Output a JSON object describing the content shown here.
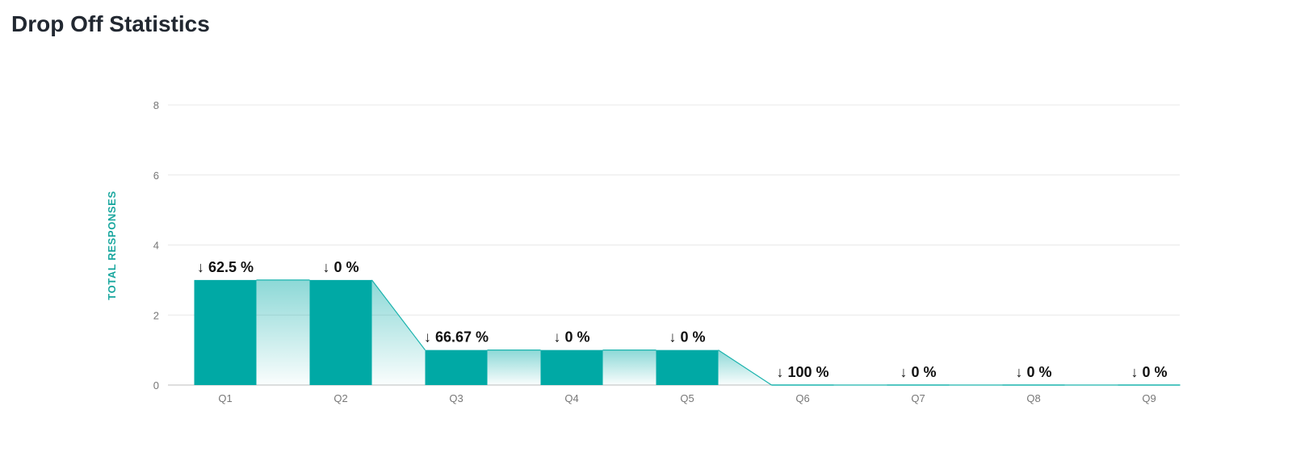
{
  "page": {
    "title": "Drop Off Statistics"
  },
  "colors": {
    "bar": "#00a9a5",
    "axis_label": "#1aa79f",
    "grid": "#e8e8e8",
    "line": "#1ab3ad"
  },
  "chart_data": {
    "type": "bar",
    "title": "",
    "xlabel": "",
    "ylabel": "TOTAL RESPONSES",
    "ylim": [
      0,
      8
    ],
    "yticks": [
      0,
      2,
      4,
      6,
      8
    ],
    "grid": true,
    "categories": [
      "Q1",
      "Q2",
      "Q3",
      "Q4",
      "Q5",
      "Q6",
      "Q7",
      "Q8",
      "Q9"
    ],
    "values": [
      3,
      3,
      1,
      1,
      1,
      0,
      0,
      0,
      0
    ],
    "drop_off_labels": [
      "↓ 62.5 %",
      "↓ 0 %",
      "↓ 66.67 %",
      "↓ 0 %",
      "↓ 0 %",
      "↓ 100 %",
      "↓ 0 %",
      "↓ 0 %",
      "↓ 0 %"
    ]
  }
}
